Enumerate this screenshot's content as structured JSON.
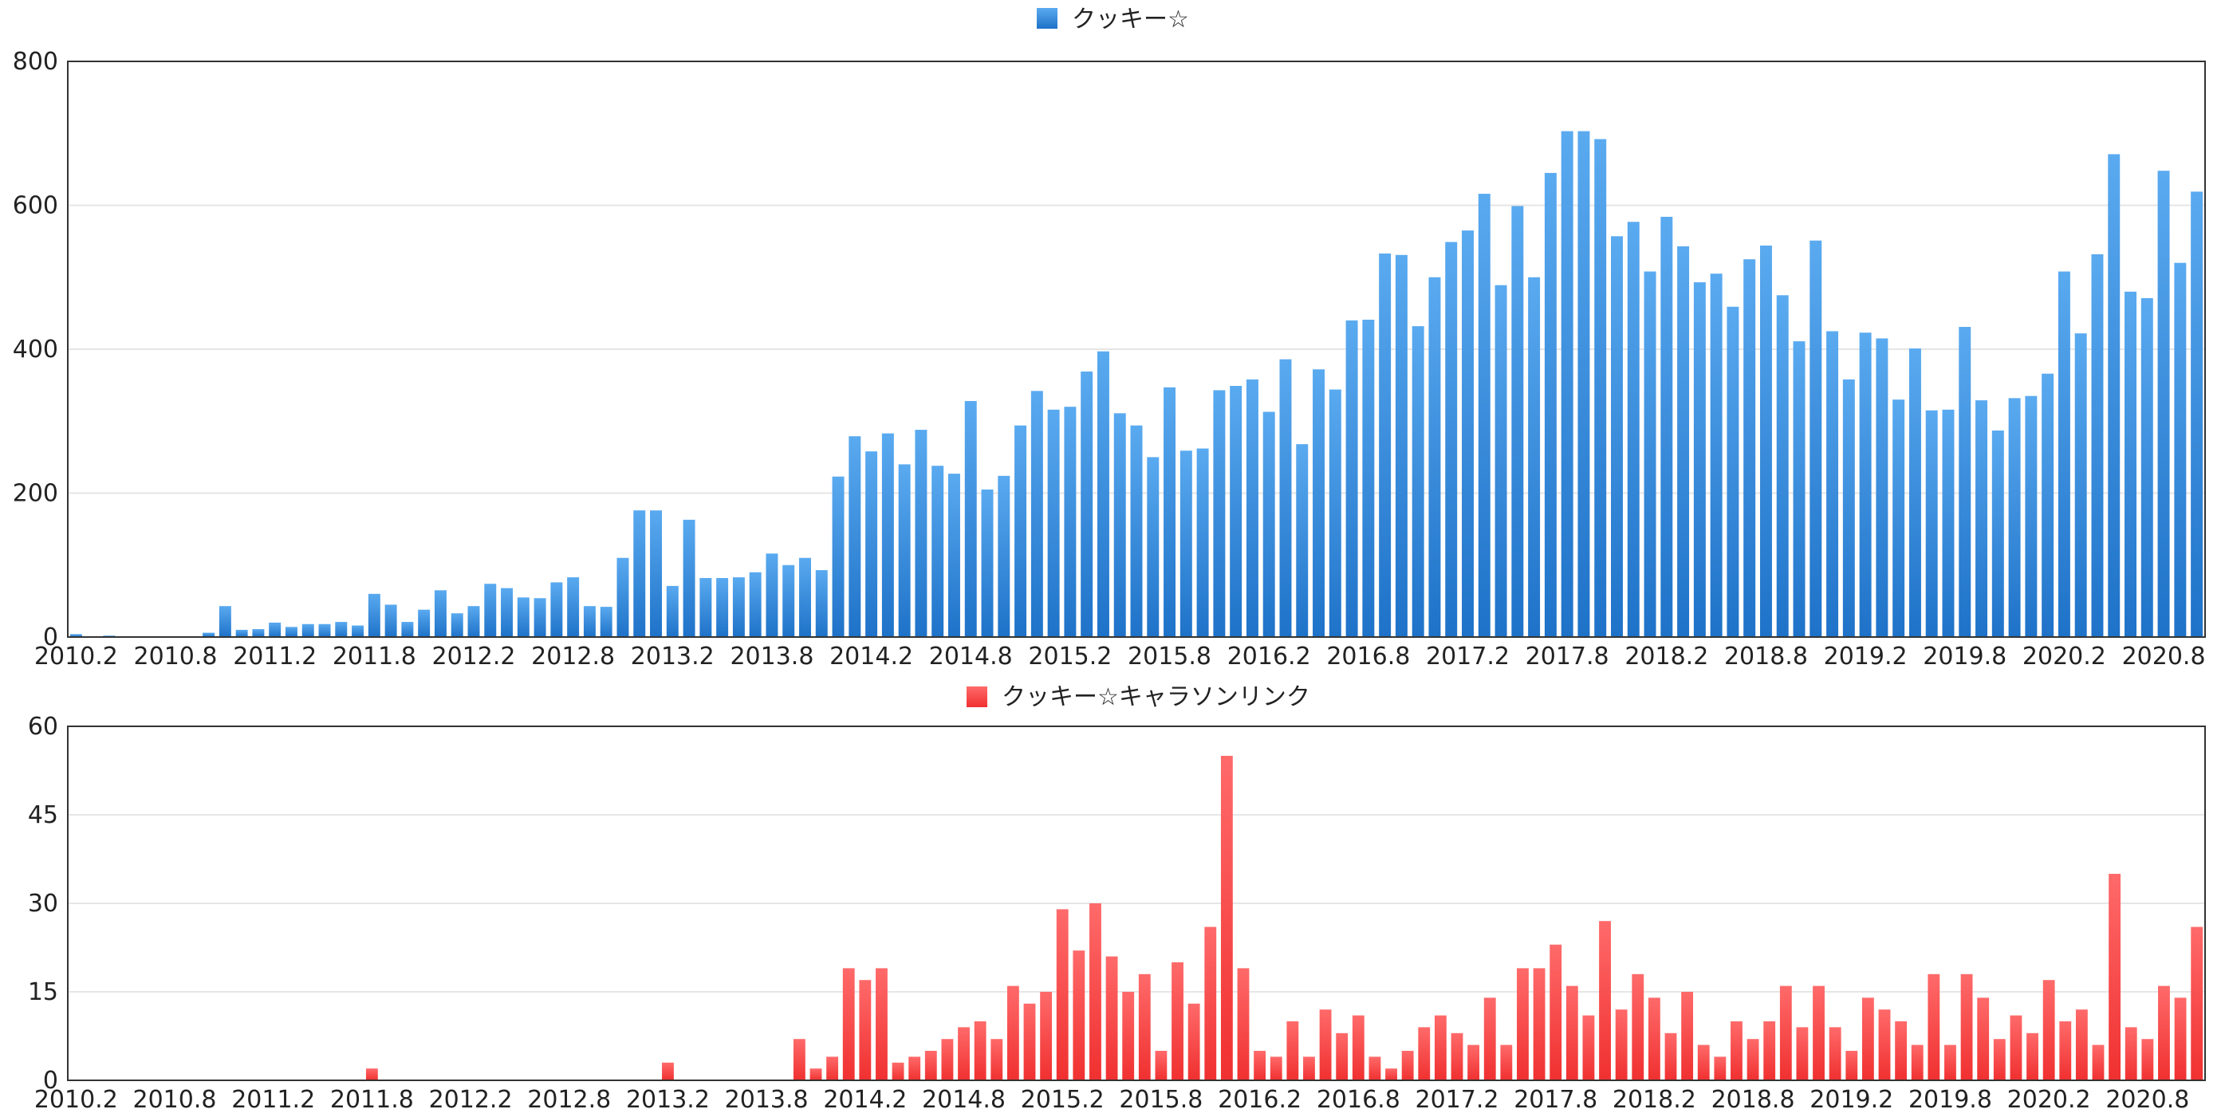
{
  "chart_data": [
    {
      "type": "bar",
      "legend": "クッキー☆",
      "color": "#1e72c8",
      "color_light": "#5aaaf0",
      "legend_position": "top-center",
      "ylim": [
        0,
        800
      ],
      "yticks": [
        "0",
        "200",
        "400",
        "600",
        "800"
      ],
      "xtick_labels": [
        "2010.2",
        "2010.8",
        "2011.2",
        "2011.8",
        "2012.2",
        "2012.8",
        "2013.2",
        "2013.8",
        "2014.2",
        "2014.8",
        "2015.2",
        "2015.8",
        "2016.2",
        "2016.8",
        "2017.2",
        "2017.8",
        "2018.2",
        "2018.8",
        "2019.2",
        "2019.8",
        "2020.2",
        "2020.8"
      ],
      "categories_start": "2010.2",
      "values": [
        4,
        0,
        2,
        0,
        0,
        0,
        0,
        0,
        6,
        43,
        10,
        11,
        20,
        14,
        18,
        18,
        21,
        16,
        60,
        45,
        21,
        38,
        65,
        33,
        43,
        74,
        68,
        55,
        54,
        76,
        83,
        43,
        42,
        110,
        176,
        176,
        71,
        163,
        82,
        82,
        83,
        90,
        116,
        100,
        110,
        93,
        223,
        279,
        258,
        283,
        240,
        288,
        238,
        227,
        328,
        205,
        224,
        294,
        342,
        316,
        320,
        369,
        397,
        311,
        294,
        250,
        347,
        259,
        262,
        343,
        349,
        358,
        313,
        386,
        268,
        372,
        344,
        440,
        441,
        533,
        531,
        432,
        500,
        549,
        565,
        616,
        489,
        599,
        500,
        645,
        703,
        703,
        692,
        557,
        577,
        508,
        584,
        543,
        493,
        505,
        459,
        525,
        544,
        475,
        411,
        551,
        425,
        358,
        423,
        415,
        330,
        401,
        315,
        316,
        431,
        329,
        287,
        332,
        335,
        366,
        508,
        422,
        532,
        671,
        480,
        471,
        648,
        520,
        619
      ]
    },
    {
      "type": "bar",
      "legend": "クッキー☆キャラソンリンク",
      "color": "#f03030",
      "color_light": "#ff6a6a",
      "legend_position": "top-center",
      "ylim": [
        0,
        60
      ],
      "yticks": [
        "0",
        "15",
        "30",
        "45",
        "60"
      ],
      "xtick_labels": [
        "2010.2",
        "2010.8",
        "2011.2",
        "2011.8",
        "2012.2",
        "2012.8",
        "2013.2",
        "2013.8",
        "2014.2",
        "2014.8",
        "2015.2",
        "2015.8",
        "2016.2",
        "2016.8",
        "2017.2",
        "2017.8",
        "2018.2",
        "2018.8",
        "2019.2",
        "2019.8",
        "2020.2",
        "2020.8"
      ],
      "categories_start": "2010.2",
      "values": [
        0,
        0,
        0,
        0,
        0,
        0,
        0,
        0,
        0,
        0,
        0,
        0,
        0,
        0,
        0,
        0,
        0,
        0,
        2,
        0,
        0,
        0,
        0,
        0,
        0,
        0,
        0,
        0,
        0,
        0,
        0,
        0,
        0,
        0,
        0,
        0,
        3,
        0,
        0,
        0,
        0,
        0,
        0,
        0,
        7,
        2,
        4,
        19,
        17,
        19,
        3,
        4,
        5,
        7,
        9,
        10,
        7,
        16,
        13,
        15,
        29,
        22,
        30,
        21,
        15,
        18,
        5,
        20,
        13,
        26,
        55,
        19,
        5,
        4,
        10,
        4,
        12,
        8,
        11,
        4,
        2,
        5,
        9,
        11,
        8,
        6,
        14,
        6,
        19,
        19,
        23,
        16,
        11,
        27,
        12,
        18,
        14,
        8,
        15,
        6,
        4,
        10,
        7,
        10,
        16,
        9,
        16,
        9,
        5,
        14,
        12,
        10,
        6,
        18,
        6,
        18,
        14,
        7,
        11,
        8,
        17,
        10,
        12,
        6,
        35,
        9,
        7,
        16,
        14,
        26
      ]
    }
  ]
}
